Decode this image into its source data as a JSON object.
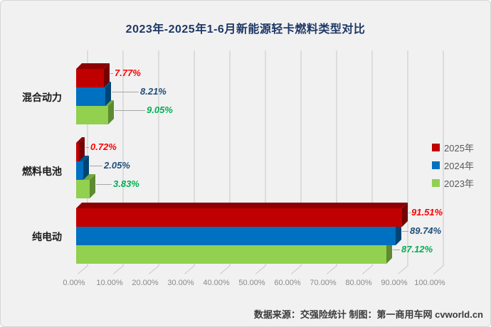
{
  "chart_data": {
    "type": "bar",
    "orientation": "horizontal-3d",
    "title": "2023年-2025年1-6月新能源轻卡燃料类型对比",
    "categories": [
      "混合动力",
      "燃料电池",
      "纯电动"
    ],
    "series": [
      {
        "name": "2025年",
        "color": "#C00000",
        "top_color": "#8E0000",
        "side_color": "#740000",
        "label_color": "#FF0000",
        "values": [
          7.77,
          0.72,
          91.51
        ],
        "labels": [
          "7.77%",
          "0.72%",
          "91.51%"
        ]
      },
      {
        "name": "2024年",
        "color": "#0070C0",
        "top_color": "#005490",
        "side_color": "#004474",
        "label_color": "#1F4E79",
        "values": [
          8.21,
          2.05,
          89.74
        ],
        "labels": [
          "8.21%",
          "2.05%",
          "89.74%"
        ]
      },
      {
        "name": "2023年",
        "color": "#92D050",
        "top_color": "#74A93C",
        "side_color": "#5E8A30",
        "label_color": "#00B050",
        "values": [
          9.05,
          3.83,
          87.12
        ],
        "labels": [
          "9.05%",
          "3.83%",
          "87.12%"
        ]
      }
    ],
    "x_ticks": [
      "0.00%",
      "10.00%",
      "20.00%",
      "30.00%",
      "40.00%",
      "50.00%",
      "60.00%",
      "70.00%",
      "80.00%",
      "90.00%",
      "100.00%"
    ],
    "xlim": [
      0,
      100
    ],
    "grid": true,
    "legend_position": "right",
    "background_color": "#F1F1F2",
    "title_color": "#1F3864"
  },
  "footer": {
    "source": "数据来源：交强险统计 制图：第一商用车网 cvworld.cn"
  }
}
